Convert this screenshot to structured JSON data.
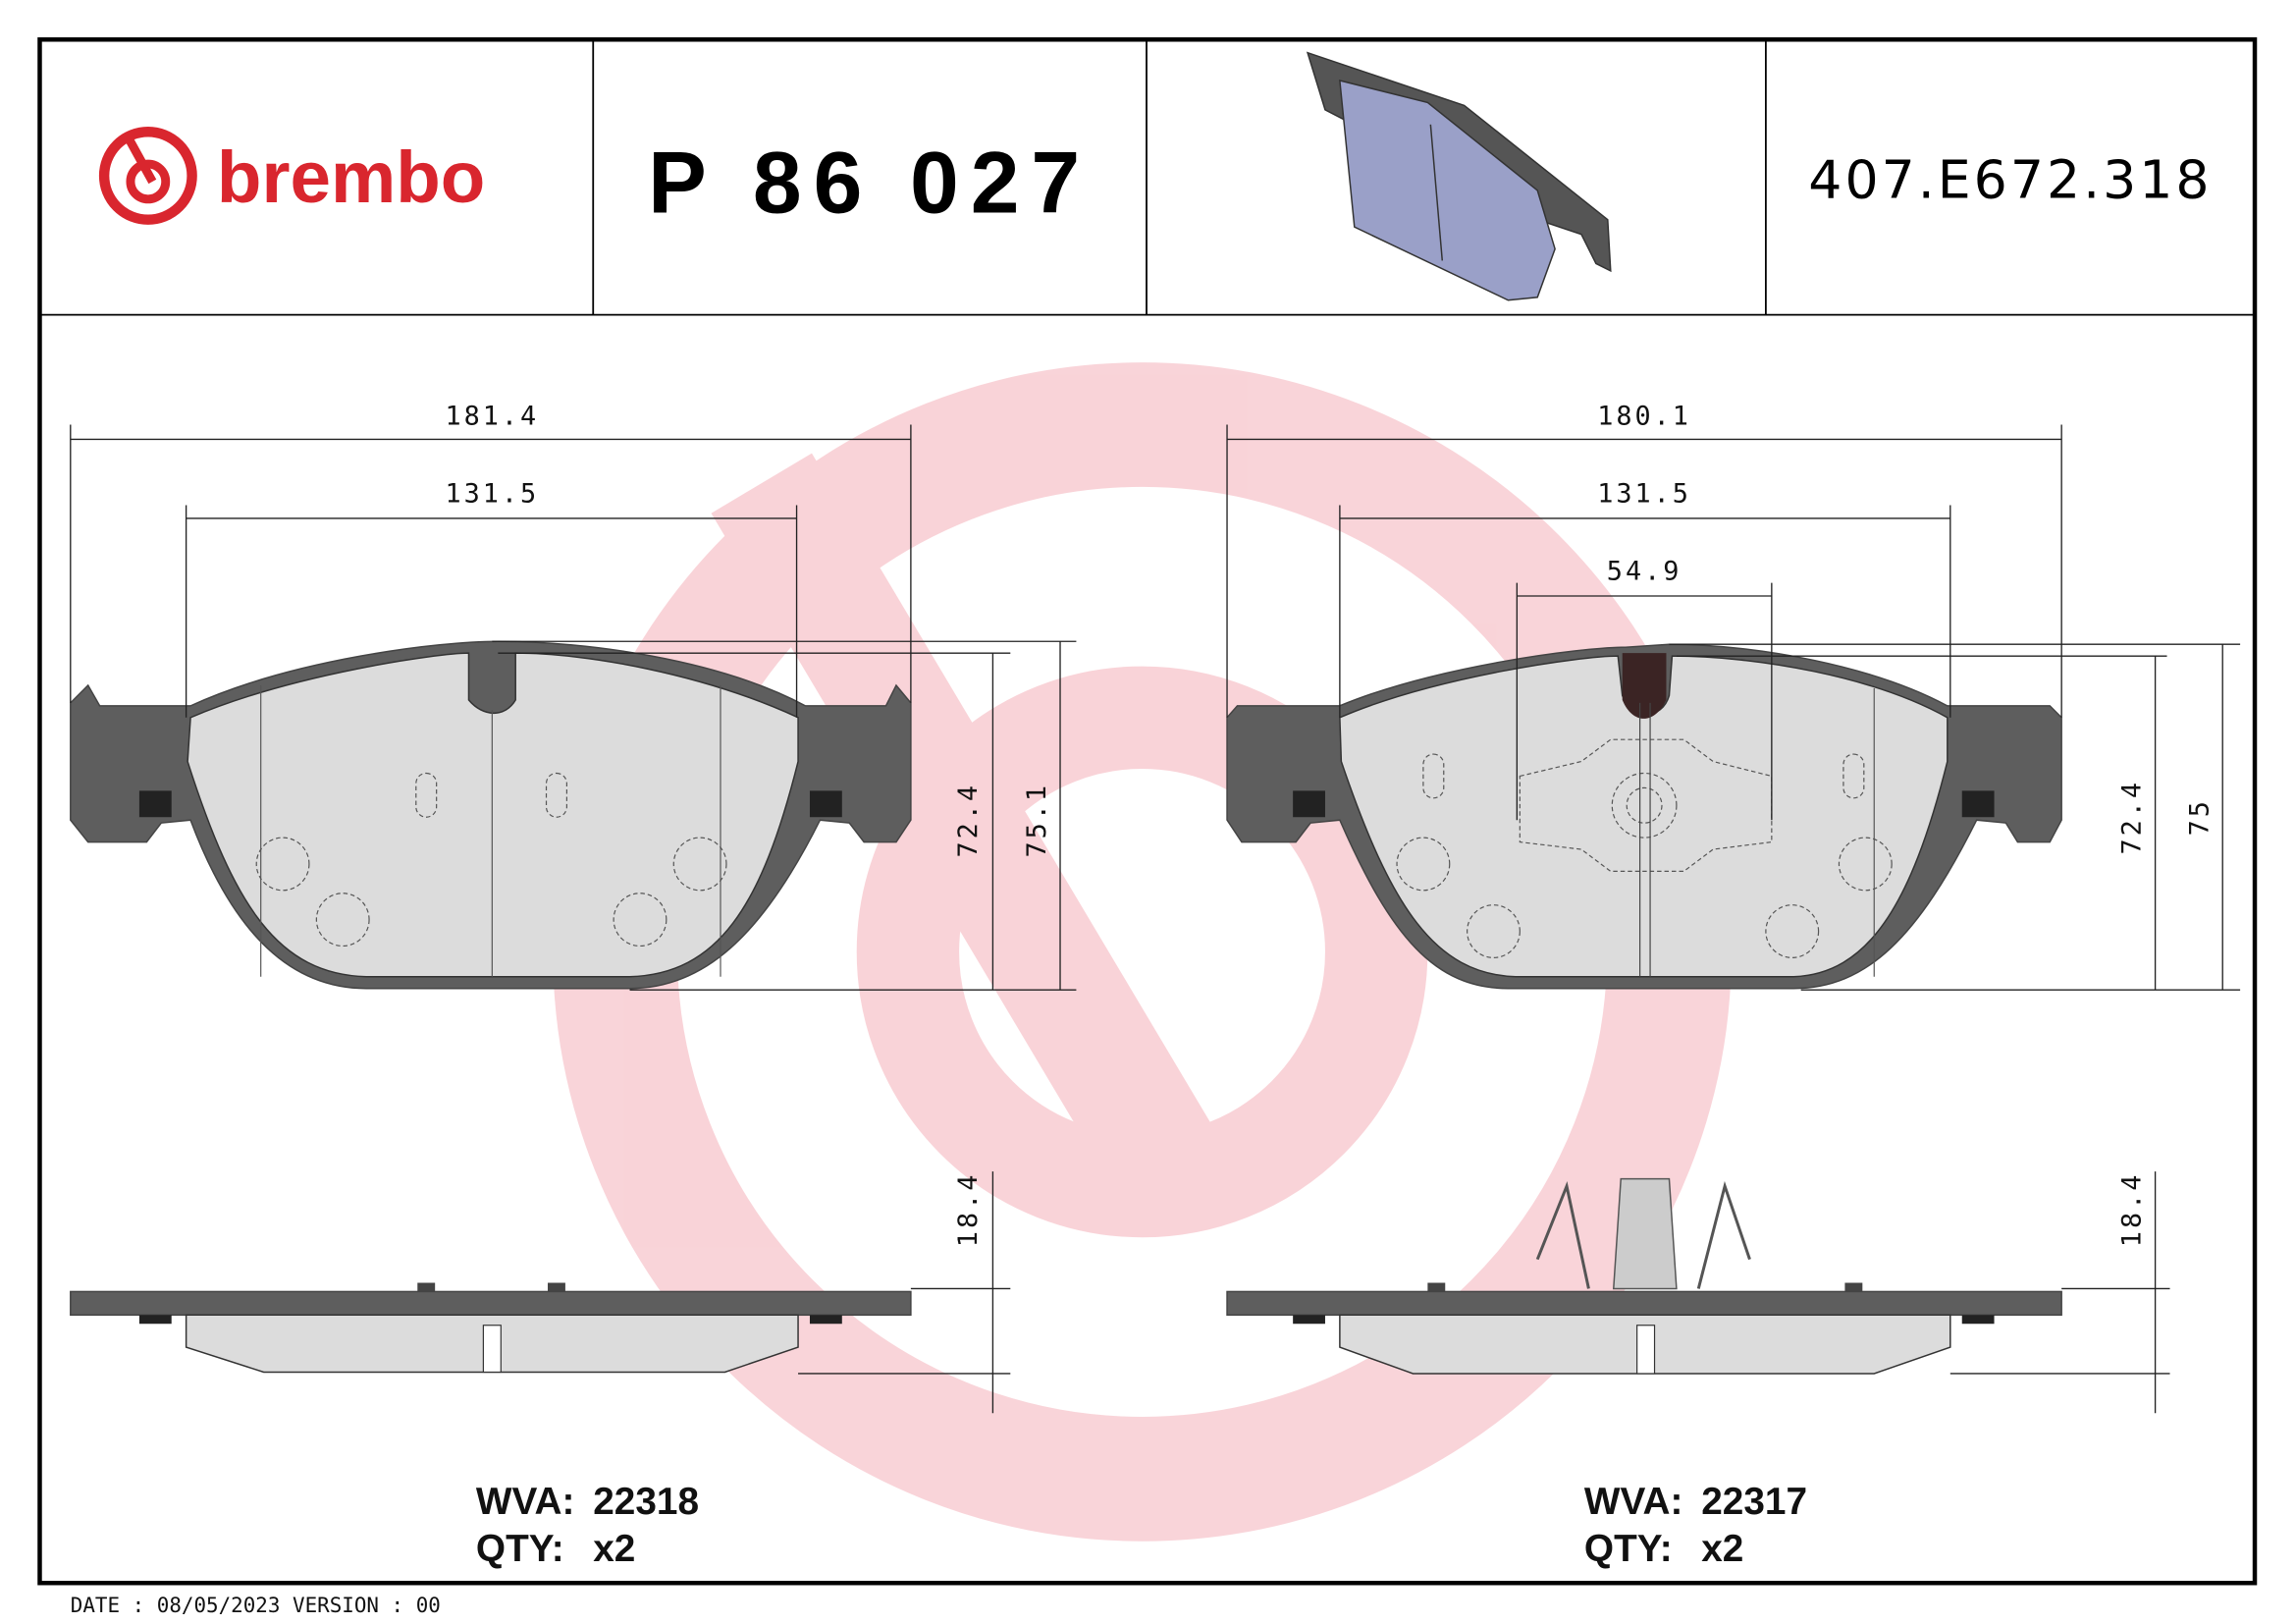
{
  "header": {
    "brand": "brembo",
    "part_number": "P 86 027",
    "reference_code": "407.E672.318",
    "brand_color": "#d9262e"
  },
  "left_pad": {
    "dim_overall_width": "181.4",
    "dim_inner_width": "131.5",
    "dim_height_inner": "72.4",
    "dim_height_outer": "75.1",
    "dim_thickness": "18.4",
    "wva_label": "WVA:",
    "wva_value": "22318",
    "qty_label": "QTY:",
    "qty_value": "x2"
  },
  "right_pad": {
    "dim_overall_width": "180.1",
    "dim_inner_width": "131.5",
    "dim_sensor_width": "54.9",
    "dim_height_inner": "72.4",
    "dim_height_outer": "75",
    "dim_thickness": "18.4",
    "wva_label": "WVA:",
    "wva_value": "22317",
    "qty_label": "QTY:",
    "qty_value": "x2"
  },
  "footer": {
    "date_version": "DATE : 08/05/2023 VERSION : 00"
  },
  "colors": {
    "watermark": "#f6c9ce",
    "backplate": "#5e5e5e",
    "friction": "#dcdcdc",
    "pad_3d": "#9aa0c8"
  }
}
